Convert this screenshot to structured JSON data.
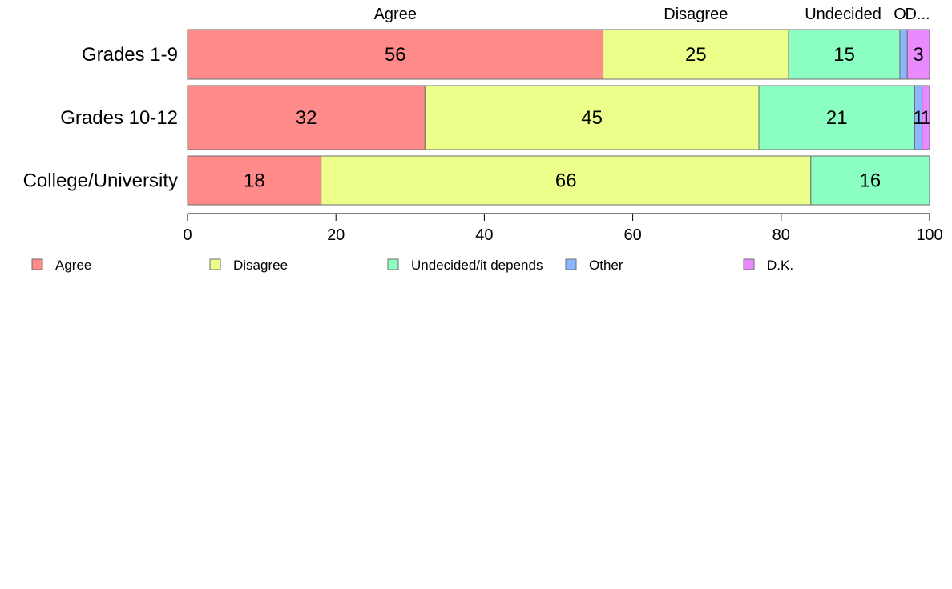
{
  "chart_data": {
    "type": "bar",
    "orientation": "horizontal",
    "stacked": true,
    "categories": [
      "Grades 1-9",
      "Grades 10-12",
      "College/University"
    ],
    "series": [
      {
        "name": "Agree",
        "values": [
          56,
          32,
          18
        ]
      },
      {
        "name": "Disagree",
        "values": [
          25,
          45,
          66
        ]
      },
      {
        "name": "Undecided/it depends",
        "values": [
          15,
          21,
          16
        ]
      },
      {
        "name": "Other",
        "values": [
          1,
          1,
          0
        ]
      },
      {
        "name": "D.K.",
        "values": [
          3,
          1,
          0
        ]
      }
    ],
    "data_labels": [
      [
        "56",
        "25",
        "15",
        "",
        "3"
      ],
      [
        "32",
        "45",
        "21",
        "1",
        "1"
      ],
      [
        "18",
        "66",
        "16",
        "",
        ""
      ]
    ],
    "top_labels": [
      "Agree",
      "Disagree",
      "Undecided",
      "O",
      "D..."
    ],
    "xlim": [
      0,
      100
    ],
    "xticks": [
      0,
      20,
      40,
      60,
      80,
      100
    ],
    "colors": [
      "#ff8a8a",
      "#ecff8a",
      "#8affc1",
      "#8ab7ff",
      "#e98aff"
    ],
    "legend": {
      "placement": "bottom"
    }
  }
}
